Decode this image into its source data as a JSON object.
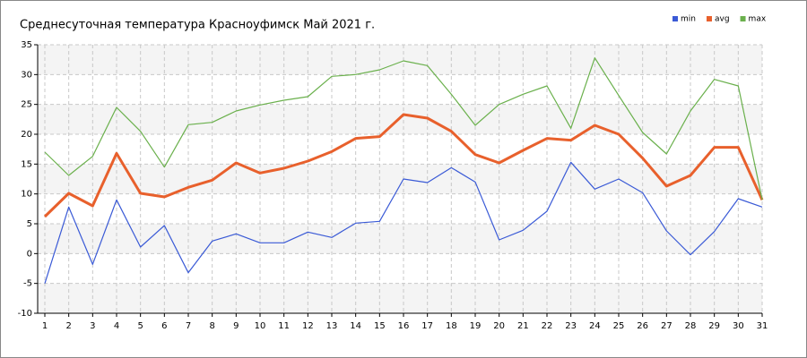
{
  "chart_data": {
    "type": "line",
    "title": "Среднесуточная температура Красноуфимск  Май 2021 г.",
    "x": [
      1,
      2,
      3,
      4,
      5,
      6,
      7,
      8,
      9,
      10,
      11,
      12,
      13,
      14,
      15,
      16,
      17,
      18,
      19,
      20,
      21,
      22,
      23,
      24,
      25,
      26,
      27,
      28,
      29,
      30,
      31
    ],
    "series": [
      {
        "name": "min",
        "color": "#3a5ad6",
        "values": [
          -5,
          7.8,
          -1.8,
          9,
          1.1,
          4.7,
          -3.2,
          2.1,
          3.3,
          1.8,
          1.8,
          3.6,
          2.7,
          5.1,
          5.4,
          12.5,
          11.9,
          14.4,
          12,
          2.3,
          3.9,
          7.1,
          15.3,
          10.8,
          12.5,
          10.2,
          3.8,
          -0.2,
          3.7,
          9.2,
          7.8
        ]
      },
      {
        "name": "avg",
        "color": "#e8602c",
        "values": [
          6.2,
          10.1,
          8,
          16.8,
          10.1,
          9.5,
          11.1,
          12.3,
          15.2,
          13.5,
          14.3,
          15.5,
          17.1,
          19.3,
          19.6,
          23.3,
          22.7,
          20.5,
          16.6,
          15.2,
          17.3,
          19.3,
          19,
          21.5,
          20,
          16,
          11.3,
          13.1,
          17.8,
          17.8,
          9
        ]
      },
      {
        "name": "max",
        "color": "#6ab04c",
        "values": [
          17,
          13.1,
          16.3,
          24.5,
          20.5,
          14.5,
          21.6,
          22,
          23.9,
          24.9,
          25.7,
          26.3,
          29.7,
          30,
          30.8,
          32.3,
          31.5,
          26.7,
          21.5,
          25,
          26.7,
          28.1,
          21,
          32.8,
          26.5,
          20.3,
          16.7,
          23.9,
          29.2,
          28.1,
          9
        ]
      }
    ],
    "xlim": [
      0.7,
      31
    ],
    "xticks": [
      1,
      2,
      3,
      4,
      5,
      6,
      7,
      8,
      9,
      10,
      11,
      12,
      13,
      14,
      15,
      16,
      17,
      18,
      19,
      20,
      21,
      22,
      23,
      24,
      25,
      26,
      27,
      28,
      29,
      30,
      31
    ],
    "ylim": [
      -10,
      35
    ],
    "yticks": [
      -10,
      -5,
      0,
      5,
      10,
      15,
      20,
      25,
      30,
      35
    ],
    "grid": true,
    "legend": "top-right"
  }
}
